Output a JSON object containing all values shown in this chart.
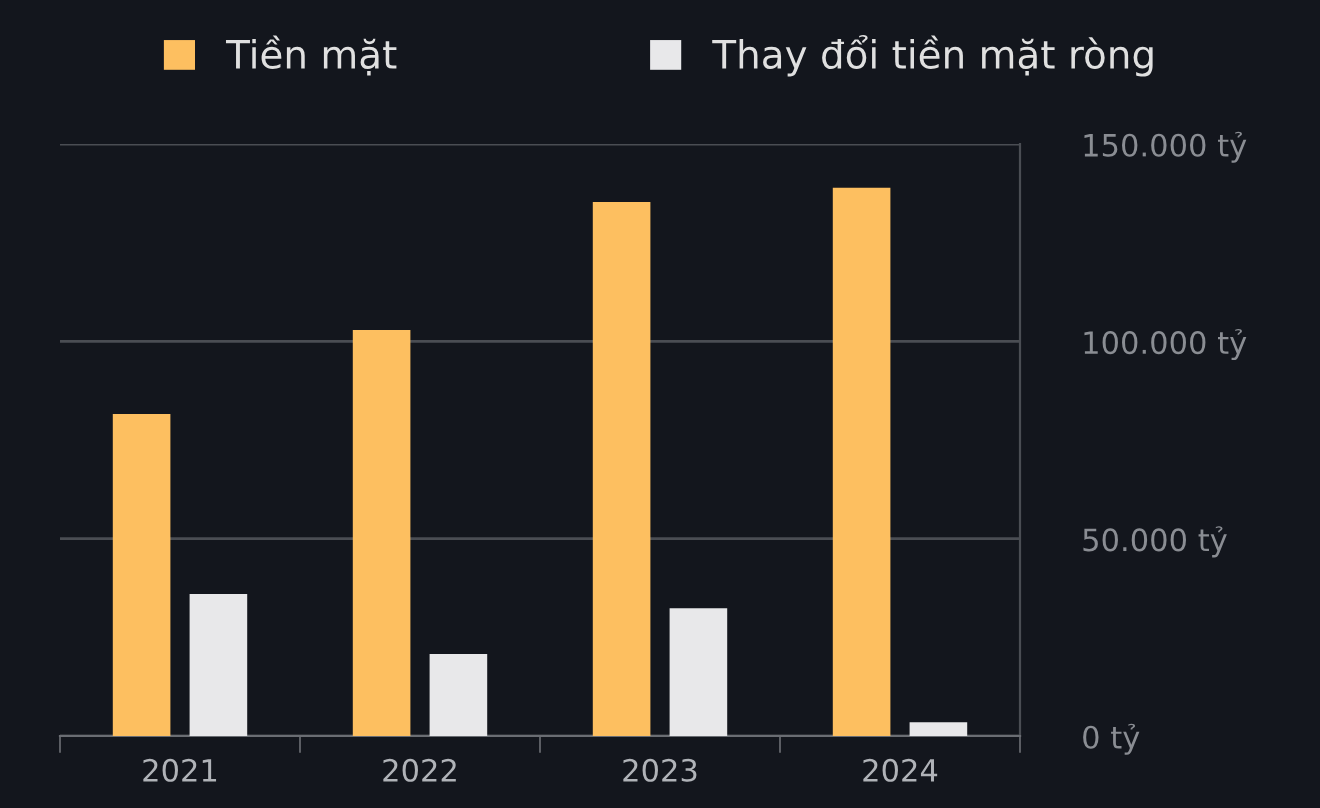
{
  "chart_data": {
    "type": "bar",
    "categories": [
      "2021",
      "2022",
      "2023",
      "2024"
    ],
    "series": [
      {
        "name": "Tiền mặt",
        "color": "#fdbf60",
        "values": [
          81600,
          102900,
          135300,
          138900
        ]
      },
      {
        "name": "Thay đổi tiền mặt ròng",
        "color": "#e8e8ea",
        "values": [
          36000,
          20800,
          32400,
          3500
        ]
      }
    ],
    "ylim": [
      0,
      150000
    ],
    "yticks": [
      {
        "value": 0,
        "label": "0 tỷ"
      },
      {
        "value": 50000,
        "label": "50.000 tỷ"
      },
      {
        "value": 100000,
        "label": "100.000 tỷ"
      },
      {
        "value": 150000,
        "label": "150.000 tỷ"
      }
    ],
    "grid": "y",
    "legend": "top"
  }
}
